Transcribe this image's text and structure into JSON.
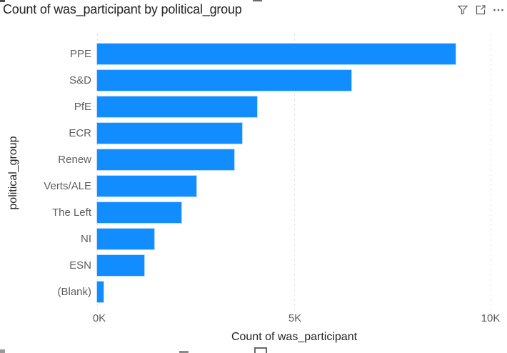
{
  "header": {
    "title": "Count of was_participant by political_group",
    "icons": [
      {
        "name": "filter-icon",
        "meaning": "filter"
      },
      {
        "name": "focus-mode-icon",
        "meaning": "focus mode"
      },
      {
        "name": "more-options-icon",
        "meaning": "more options"
      }
    ],
    "icon_color": "#605E5C"
  },
  "chart_data": {
    "type": "bar",
    "orientation": "horizontal",
    "title": "Count of was_participant by political_group",
    "categories": [
      "PPE",
      "S&D",
      "PfE",
      "ECR",
      "Renew",
      "Verts/ALE",
      "The Left",
      "NI",
      "ESN",
      "(Blank)"
    ],
    "values": [
      9100,
      6450,
      4050,
      3680,
      3470,
      2520,
      2140,
      1450,
      1200,
      160
    ],
    "xlabel": "Count of was_participant",
    "ylabel": "political_group",
    "xlim": [
      0,
      10000
    ],
    "x_ticks": [
      "0K",
      "5K",
      "10K"
    ],
    "x_tick_values": [
      0,
      5000,
      10000
    ],
    "grid": "dotted-vertical",
    "legend": "none",
    "bar_color": "#118DFF",
    "text_colors": {
      "axis_title": "#252423",
      "tick_label": "#605E5C",
      "chart_title": "#252423"
    }
  }
}
